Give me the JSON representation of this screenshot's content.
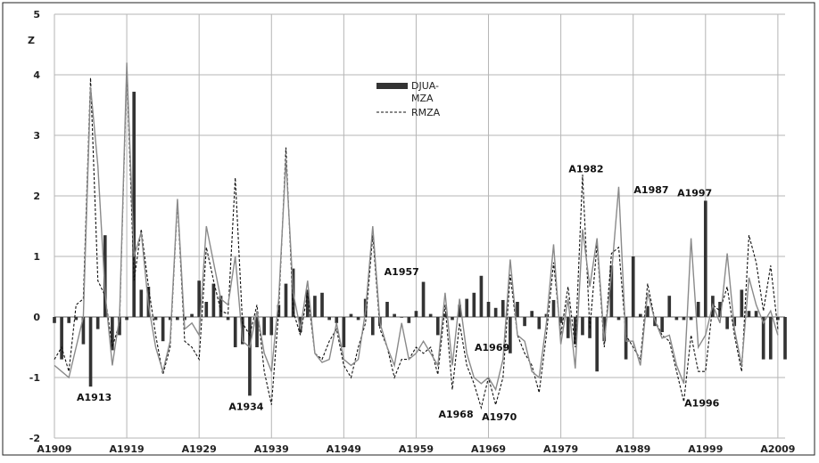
{
  "chart_data": {
    "type": "bar+line",
    "ylabel": "Z",
    "ylim": [
      -2,
      5
    ],
    "yticks": [
      "-2",
      "-1",
      "0",
      "1",
      "2",
      "3",
      "4",
      "5"
    ],
    "xlim": [
      1909,
      2010
    ],
    "xticks": [
      "A1909",
      "A1919",
      "A1929",
      "A1939",
      "A1949",
      "A1959",
      "A1969",
      "A1979",
      "A1989",
      "A1999",
      "A2009"
    ],
    "xtick_years": [
      1909,
      1919,
      1929,
      1939,
      1949,
      1959,
      1969,
      1979,
      1989,
      1999,
      2009
    ],
    "grid": true,
    "legend": {
      "placement": "top-center",
      "bar_label_line1": "DJUA-",
      "bar_label_line2": "MZA",
      "line_label": "RMZA"
    },
    "years": [
      1909,
      1910,
      1911,
      1912,
      1913,
      1914,
      1915,
      1916,
      1917,
      1918,
      1919,
      1920,
      1921,
      1922,
      1923,
      1924,
      1925,
      1926,
      1927,
      1928,
      1929,
      1930,
      1931,
      1932,
      1933,
      1934,
      1935,
      1936,
      1937,
      1938,
      1939,
      1940,
      1941,
      1942,
      1943,
      1944,
      1945,
      1946,
      1947,
      1948,
      1949,
      1950,
      1951,
      1952,
      1953,
      1954,
      1955,
      1956,
      1957,
      1958,
      1959,
      1960,
      1961,
      1962,
      1963,
      1964,
      1965,
      1966,
      1967,
      1968,
      1969,
      1970,
      1971,
      1972,
      1973,
      1974,
      1975,
      1976,
      1977,
      1978,
      1979,
      1980,
      1981,
      1982,
      1983,
      1984,
      1985,
      1986,
      1987,
      1988,
      1989,
      1990,
      1991,
      1992,
      1993,
      1994,
      1995,
      1996,
      1997,
      1998,
      1999,
      2000,
      2001,
      2002,
      2003,
      2004,
      2005,
      2006,
      2007,
      2008,
      2009,
      2010
    ],
    "series": [
      {
        "name": "DJUA-MZA",
        "kind": "bar",
        "color": "#333333",
        "values": [
          -0.1,
          -0.7,
          -0.1,
          -0.05,
          -0.45,
          -1.15,
          -0.2,
          1.35,
          -0.55,
          -0.3,
          -0.05,
          3.72,
          0.45,
          0.5,
          -0.05,
          -0.4,
          -0.05,
          -0.05,
          -0.05,
          0.05,
          0.6,
          0.25,
          0.55,
          0.35,
          -0.05,
          -0.5,
          -0.45,
          -1.3,
          -0.5,
          -0.3,
          -0.3,
          0.2,
          0.55,
          0.8,
          -0.25,
          0.45,
          0.35,
          0.4,
          -0.05,
          -0.1,
          -0.5,
          0.05,
          -0.05,
          0.3,
          -0.3,
          -0.15,
          0.25,
          0.05,
          0,
          -0.1,
          0.1,
          0.58,
          0.05,
          -0.3,
          0.05,
          -0.05,
          0.2,
          0.3,
          0.4,
          0.68,
          0.25,
          0.15,
          0.28,
          -0.6,
          0.25,
          -0.15,
          0.1,
          -0.2,
          0.05,
          0.28,
          -0.1,
          -0.35,
          -0.45,
          -0.3,
          -0.35,
          -0.9,
          -0.4,
          0.85,
          -0.05,
          -0.7,
          1.0,
          0.05,
          0.18,
          -0.15,
          -0.25,
          0.35,
          -0.05,
          -0.05,
          -0.05,
          0.25,
          1.92,
          0.35,
          0.25,
          -0.2,
          -0.15,
          0.45,
          0.1,
          0.1,
          -0.7,
          -0.7,
          -0.05,
          -0.7
        ]
      },
      {
        "name": "RMZA",
        "kind": "line",
        "style": "dashed",
        "color": "#111111",
        "values": [
          -0.7,
          -0.5,
          -0.9,
          0.2,
          0.3,
          3.95,
          0.6,
          0.35,
          -0.5,
          -0.1,
          4.1,
          0.6,
          1.45,
          0.5,
          -0.3,
          -0.95,
          -0.5,
          1.9,
          -0.4,
          -0.5,
          -0.7,
          1.15,
          0.6,
          0.1,
          0.05,
          2.3,
          -0.1,
          -0.3,
          0.2,
          -0.9,
          -1.45,
          0.1,
          2.8,
          0.1,
          -0.3,
          0.4,
          -0.6,
          -0.7,
          -0.4,
          -0.2,
          -0.8,
          -1.0,
          -0.5,
          -0.1,
          1.35,
          -0.2,
          -0.5,
          -1.0,
          -0.7,
          -0.7,
          -0.5,
          -0.6,
          -0.5,
          -0.95,
          0.2,
          -1.2,
          -0.1,
          -0.8,
          -1.1,
          -1.5,
          -1.0,
          -1.45,
          -1.0,
          0.7,
          -0.3,
          -0.6,
          -0.8,
          -1.25,
          -0.3,
          0.9,
          -0.3,
          0.5,
          -0.5,
          2.35,
          -0.2,
          1.2,
          -0.5,
          1.05,
          1.15,
          -0.3,
          -0.5,
          -0.7,
          0.55,
          -0.05,
          -0.3,
          -0.4,
          -0.9,
          -1.4,
          -0.3,
          -0.9,
          -0.9,
          0.2,
          0.1,
          0.5,
          -0.3,
          -0.9,
          1.35,
          0.9,
          0.1,
          0.85,
          -0.2
        ]
      },
      {
        "name": "",
        "kind": "line",
        "style": "solid",
        "color": "#8a8a8a",
        "values": [
          -0.8,
          -0.9,
          -1.0,
          -0.5,
          0.0,
          3.8,
          2.5,
          0.4,
          -0.8,
          0.0,
          4.2,
          1.0,
          1.4,
          0.2,
          -0.5,
          -0.9,
          -0.4,
          1.95,
          -0.2,
          -0.1,
          -0.3,
          1.5,
          0.9,
          0.3,
          0.2,
          1.0,
          -0.4,
          -0.5,
          0.1,
          -0.6,
          -0.9,
          0.3,
          2.6,
          0.4,
          -0.2,
          0.6,
          -0.6,
          -0.75,
          -0.7,
          -0.1,
          -0.7,
          -0.8,
          -0.7,
          0.1,
          1.5,
          -0.1,
          -0.5,
          -0.8,
          -0.1,
          -0.7,
          -0.6,
          -0.4,
          -0.6,
          -0.8,
          0.4,
          -0.8,
          0.3,
          -0.6,
          -1.0,
          -1.1,
          -1.0,
          -1.2,
          -0.7,
          0.95,
          -0.3,
          -0.4,
          -0.9,
          -1.0,
          -0.1,
          1.2,
          -0.45,
          0.3,
          -0.85,
          1.45,
          0.5,
          1.3,
          -0.4,
          0.7,
          2.15,
          -0.4,
          -0.4,
          -0.8,
          0.4,
          -0.05,
          -0.35,
          -0.3,
          -0.8,
          -1.1,
          1.3,
          -0.5,
          -0.3,
          0.2,
          -0.1,
          1.05,
          -0.2,
          -0.8,
          0.65,
          0.2,
          -0.1,
          0.1,
          -0.3
        ]
      }
    ],
    "annotations": [
      {
        "label": "A1913",
        "year": 1914.5,
        "z": -1.32
      },
      {
        "label": "A1934",
        "year": 1935.5,
        "z": -1.48
      },
      {
        "label": "A1957",
        "year": 1957,
        "z": 0.75
      },
      {
        "label": "A1968",
        "year": 1964.5,
        "z": -1.6
      },
      {
        "label": "A1969",
        "year": 1969.5,
        "z": -0.5
      },
      {
        "label": "A1970",
        "year": 1970.5,
        "z": -1.65
      },
      {
        "label": "A1982",
        "year": 1982.5,
        "z": 2.45
      },
      {
        "label": "A1987",
        "year": 1991.5,
        "z": 2.1
      },
      {
        "label": "A1997",
        "year": 1997.5,
        "z": 2.05
      },
      {
        "label": "A1996",
        "year": 1998.5,
        "z": -1.42
      }
    ]
  }
}
